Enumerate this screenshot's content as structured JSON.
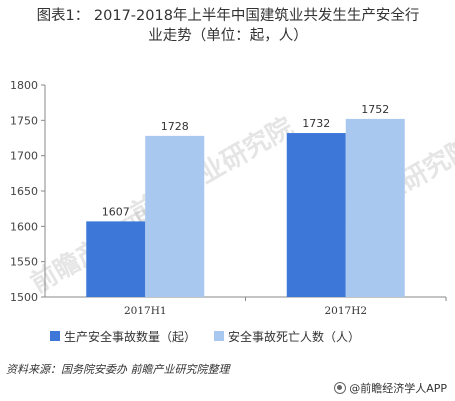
{
  "title_line1": "图表1： 2017-2018年上半年中国建筑业共发生生产安全行",
  "title_line2": "业走势（单位：起，人）",
  "source_text": "资料来源：国务院安委办 前瞻产业研究院整理",
  "brand_text": "@前瞻经济学人APP",
  "watermark_text": "前瞻产业研究院",
  "chart_data": {
    "type": "bar",
    "categories": [
      "2017H1",
      "2017H2"
    ],
    "series": [
      {
        "name": "生产安全事故数量（起）",
        "values": [
          1607,
          1732
        ],
        "color": "#3d78d8"
      },
      {
        "name": "安全事故死亡人数（人）",
        "values": [
          1728,
          1752
        ],
        "color": "#a9c8f0"
      }
    ],
    "ylim": [
      1500,
      1800
    ],
    "yticks": [
      1500,
      1550,
      1600,
      1650,
      1700,
      1750,
      1800
    ],
    "grid": false,
    "legend_position": "bottom-left",
    "title": "",
    "xlabel": "",
    "ylabel": ""
  }
}
